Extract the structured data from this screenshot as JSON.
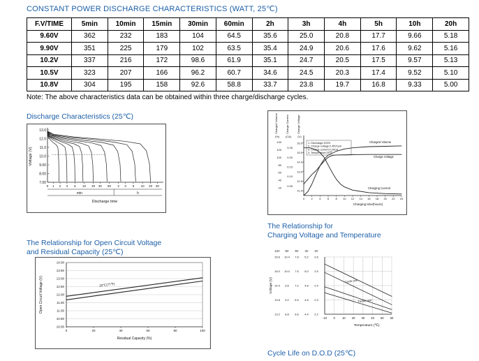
{
  "page": {
    "title": "CONSTANT POWER DISCHARGE CHARACTERISTICS (WATT, 25℃)",
    "note": "Note: The above characteristics data can be obtained within three charge/discharge cycles."
  },
  "table": {
    "headers": [
      "F.V/TIME",
      "5min",
      "10min",
      "15min",
      "30min",
      "60min",
      "2h",
      "3h",
      "4h",
      "5h",
      "10h",
      "20h"
    ],
    "rows": [
      [
        "9.60V",
        "362",
        "232",
        "183",
        "104",
        "64.5",
        "35.6",
        "25.0",
        "20.8",
        "17.7",
        "9.66",
        "5.18"
      ],
      [
        "9.90V",
        "351",
        "225",
        "179",
        "102",
        "63.5",
        "35.4",
        "24.9",
        "20.6",
        "17.6",
        "9.62",
        "5.16"
      ],
      [
        "10.2V",
        "337",
        "216",
        "172",
        "98.6",
        "61.9",
        "35.1",
        "24.7",
        "20.5",
        "17.5",
        "9.57",
        "5.13"
      ],
      [
        "10.5V",
        "323",
        "207",
        "166",
        "96.2",
        "60.7",
        "34.6",
        "24.5",
        "20.3",
        "17.4",
        "9.52",
        "5.10"
      ],
      [
        "10.8V",
        "304",
        "195",
        "158",
        "92.6",
        "58.8",
        "33.7",
        "23.8",
        "19.7",
        "16.8",
        "9.33",
        "5.00"
      ]
    ]
  },
  "sections": {
    "discharge_title": "Discharge Characteristics (25℃)",
    "ocv_title_line1": "The Relationship for Open Circuit Voltage",
    "ocv_title_line2": "and Residual Capacity (25℃)",
    "charging_title_line1": "The Relationship for",
    "charging_title_line2": "Charging Voltage and Temperature",
    "cycle_life_title": "Cycle Life on D.O.D (25℃)"
  },
  "chart_data": [
    {
      "id": "discharge",
      "type": "line",
      "title": "Discharge Characteristics (25℃)",
      "ylabel": "Voltage (V)",
      "xlabel": "Discharge time",
      "ylim": [
        7.0,
        13.0
      ],
      "y_ticks": [
        "13.0",
        "12.0",
        "11.0",
        "10.0",
        "9.00",
        "8.00",
        "7.00"
      ],
      "x_origin": "0",
      "x_ticks_min": [
        "1",
        "2",
        "3",
        "5",
        "10",
        "20",
        "30",
        "60"
      ],
      "x_ticks_h": [
        "2",
        "3",
        "5",
        "10",
        "20",
        "30"
      ],
      "x_unit_labels": [
        "min",
        "h"
      ],
      "series": [
        {
          "name": "curve-1",
          "points": [
            [
              0,
              12.75
            ],
            [
              0.006,
              12.2
            ],
            [
              0.025,
              11.85
            ],
            [
              0.05,
              11.55
            ],
            [
              0.075,
              11.3
            ],
            [
              0.09,
              11.0
            ],
            [
              0.096,
              10.3
            ],
            [
              0.099,
              9.0
            ],
            [
              0.1,
              7.1
            ]
          ]
        },
        {
          "name": "curve-2",
          "points": [
            [
              0,
              12.75
            ],
            [
              0.01,
              12.2
            ],
            [
              0.043,
              11.9
            ],
            [
              0.085,
              11.6
            ],
            [
              0.128,
              11.3
            ],
            [
              0.153,
              11.0
            ],
            [
              0.163,
              10.3
            ],
            [
              0.168,
              9.0
            ],
            [
              0.17,
              7.1
            ]
          ]
        },
        {
          "name": "curve-3",
          "points": [
            [
              0,
              12.75
            ],
            [
              0.014,
              12.25
            ],
            [
              0.06,
              11.95
            ],
            [
              0.12,
              11.65
            ],
            [
              0.18,
              11.35
            ],
            [
              0.216,
              11.05
            ],
            [
              0.23,
              10.3
            ],
            [
              0.238,
              9.0
            ],
            [
              0.24,
              7.1
            ]
          ]
        },
        {
          "name": "curve-4",
          "points": [
            [
              0,
              12.75
            ],
            [
              0.019,
              12.25
            ],
            [
              0.078,
              11.95
            ],
            [
              0.155,
              11.65
            ],
            [
              0.233,
              11.4
            ],
            [
              0.279,
              11.1
            ],
            [
              0.298,
              10.35
            ],
            [
              0.307,
              9.0
            ],
            [
              0.31,
              7.1
            ]
          ]
        },
        {
          "name": "curve-5",
          "points": [
            [
              0,
              12.8
            ],
            [
              0.024,
              12.3
            ],
            [
              0.1,
              12.0
            ],
            [
              0.2,
              11.7
            ],
            [
              0.3,
              11.45
            ],
            [
              0.36,
              11.15
            ],
            [
              0.384,
              10.4
            ],
            [
              0.396,
              9.0
            ],
            [
              0.4,
              7.1
            ]
          ]
        },
        {
          "name": "curve-6",
          "points": [
            [
              0,
              12.8
            ],
            [
              0.031,
              12.35
            ],
            [
              0.13,
              12.05
            ],
            [
              0.26,
              11.75
            ],
            [
              0.39,
              11.5
            ],
            [
              0.468,
              11.2
            ],
            [
              0.499,
              10.45
            ],
            [
              0.515,
              9.0
            ],
            [
              0.52,
              7.1
            ]
          ]
        },
        {
          "name": "curve-7",
          "points": [
            [
              0,
              12.8
            ],
            [
              0.038,
              12.4
            ],
            [
              0.16,
              12.1
            ],
            [
              0.32,
              11.8
            ],
            [
              0.48,
              11.55
            ],
            [
              0.576,
              11.25
            ],
            [
              0.614,
              10.5
            ],
            [
              0.634,
              9.0
            ],
            [
              0.64,
              7.1
            ]
          ]
        },
        {
          "name": "curve-8",
          "points": [
            [
              0,
              12.85
            ],
            [
              0.046,
              12.45
            ],
            [
              0.193,
              12.15
            ],
            [
              0.385,
              11.9
            ],
            [
              0.578,
              11.6
            ],
            [
              0.693,
              11.3
            ],
            [
              0.739,
              10.55
            ],
            [
              0.762,
              9.1
            ],
            [
              0.77,
              7.1
            ]
          ]
        },
        {
          "name": "curve-9",
          "points": [
            [
              0,
              12.85
            ],
            [
              0.054,
              12.5
            ],
            [
              0.225,
              12.2
            ],
            [
              0.45,
              11.95
            ],
            [
              0.675,
              11.7
            ],
            [
              0.81,
              11.4
            ],
            [
              0.864,
              10.6
            ],
            [
              0.891,
              9.1
            ],
            [
              0.9,
              7.1
            ]
          ]
        }
      ]
    },
    {
      "id": "charge-characteristics",
      "type": "line",
      "xlabel": "Charging time(hours)",
      "x_origin": "0",
      "x_ticks": [
        "2",
        "4",
        "6",
        "8",
        "10",
        "12",
        "14",
        "16",
        "18",
        "20",
        "22",
        "24"
      ],
      "axes": [
        {
          "label": "Charged Volume",
          "unit": "(%)",
          "ticks": [
            "140",
            "120",
            "100",
            "80",
            "60",
            "40",
            "20"
          ]
        },
        {
          "label": "Charge Current",
          "unit": "(CA)",
          "ticks": [
            "0.25",
            "0.20",
            "0.15",
            "0.10",
            "0.05"
          ]
        },
        {
          "label": "Charge Voltage",
          "unit": "(V)",
          "ticks": [
            "16.0",
            "15.0",
            "14.0",
            "13.0",
            "12.0",
            "11.0"
          ]
        }
      ],
      "legend_notes": [
        "1. Discharge:100%",
        "2. Charge voltage:2.45V/cell",
        "3. Charge current:0.25CA",
        "4. Temperature:25℃"
      ],
      "curve_labels": [
        "Charged Volume",
        "Charge Voltage",
        "Charging Current"
      ],
      "series": [
        {
          "name": "charged-volume",
          "scale": "volume",
          "points": [
            [
              0,
              0
            ],
            [
              1,
              10
            ],
            [
              2,
              30
            ],
            [
              3,
              55
            ],
            [
              4,
              78
            ],
            [
              5,
              95
            ],
            [
              6,
              106
            ],
            [
              8,
              116
            ],
            [
              10,
              122
            ],
            [
              12,
              125
            ],
            [
              16,
              128
            ],
            [
              20,
              129
            ],
            [
              24,
              130
            ]
          ]
        },
        {
          "name": "charge-voltage",
          "scale": "voltage",
          "points": [
            [
              0,
              11.7
            ],
            [
              1,
              12.2
            ],
            [
              2,
              12.7
            ],
            [
              3,
              13.1
            ],
            [
              4,
              13.6
            ],
            [
              5,
              14.1
            ],
            [
              6,
              14.5
            ],
            [
              7,
              14.7
            ],
            [
              8,
              14.75
            ],
            [
              12,
              14.78
            ],
            [
              16,
              14.8
            ],
            [
              24,
              14.8
            ]
          ]
        },
        {
          "name": "charging-current",
          "scale": "current",
          "points": [
            [
              0,
              0.25
            ],
            [
              1.5,
              0.25
            ],
            [
              3,
              0.24
            ],
            [
              4,
              0.225
            ],
            [
              5,
              0.2
            ],
            [
              6,
              0.16
            ],
            [
              7,
              0.12
            ],
            [
              8,
              0.085
            ],
            [
              9,
              0.06
            ],
            [
              10,
              0.045
            ],
            [
              12,
              0.028
            ],
            [
              16,
              0.015
            ],
            [
              20,
              0.01
            ],
            [
              24,
              0.008
            ]
          ]
        }
      ]
    },
    {
      "id": "open-circuit-voltage",
      "type": "line",
      "ylabel": "Open Circuit Voltage (V)",
      "xlabel": "Residual Capacity (%)",
      "ylim": [
        10.0,
        14.0
      ],
      "xlim": [
        0,
        100
      ],
      "y_ticks": [
        "14.00",
        "13.50",
        "13.00",
        "12.50",
        "12.00",
        "11.50",
        "11.00",
        "10.50",
        "10.00"
      ],
      "x_ticks": [
        "0",
        "20",
        "40",
        "60",
        "80",
        "100"
      ],
      "annotation": "25℃(77℉)",
      "series": [
        {
          "name": "ocv-upper",
          "points": [
            [
              0,
              11.9
            ],
            [
              100,
              13.05
            ]
          ]
        },
        {
          "name": "ocv-lower",
          "points": [
            [
              0,
              11.68
            ],
            [
              100,
              12.85
            ]
          ]
        }
      ]
    },
    {
      "id": "charging-voltage-temperature",
      "type": "line",
      "ylabel": "Voltage (V)",
      "xlabel": "Temperature (℃)",
      "col_headers": [
        "12V",
        "8V",
        "6V",
        "4V",
        "2V"
      ],
      "y_tick_rows": [
        [
          "15.6",
          "10.4",
          "7.8",
          "5.2",
          "2.6"
        ],
        [
          "15.0",
          "10.0",
          "7.5",
          "5.0",
          "2.5"
        ],
        [
          "14.4",
          "9.6",
          "7.2",
          "4.8",
          "2.4"
        ],
        [
          "13.8",
          "9.2",
          "6.9",
          "4.6",
          "2.3"
        ],
        [
          "13.2",
          "8.8",
          "6.6",
          "4.4",
          "2.2"
        ]
      ],
      "x_ticks": [
        "-10",
        "0",
        "10",
        "20",
        "30",
        "40",
        "50",
        "60"
      ],
      "line_labels": [
        "Cycle use",
        "Trickle use"
      ],
      "series": [
        {
          "name": "cycle-use-upper",
          "points": [
            [
              -10,
              15.3
            ],
            [
              60,
              13.95
            ]
          ]
        },
        {
          "name": "cycle-use-lower",
          "points": [
            [
              -10,
              14.95
            ],
            [
              60,
              13.6
            ]
          ]
        },
        {
          "name": "trickle-use-upper",
          "points": [
            [
              -10,
              14.35
            ],
            [
              60,
              13.4
            ]
          ]
        },
        {
          "name": "trickle-use-lower",
          "points": [
            [
              -10,
              14.1
            ],
            [
              60,
              13.25
            ]
          ]
        }
      ]
    }
  ]
}
